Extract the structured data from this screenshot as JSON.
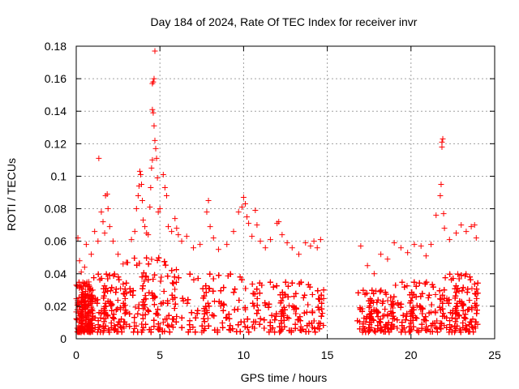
{
  "chart_data": {
    "type": "scatter",
    "title": "Day 184 of 2024, Rate Of TEC Index for receiver invr",
    "xlabel": "GPS time / hours",
    "ylabel": "ROTI / TECUs",
    "xlim": [
      0,
      25
    ],
    "ylim": [
      0,
      0.18
    ],
    "x_ticks": [
      0,
      5,
      10,
      15,
      20,
      25
    ],
    "x_tick_labels": [
      "0",
      "5",
      "10",
      "15",
      "20",
      "25"
    ],
    "y_ticks": [
      0,
      0.02,
      0.04,
      0.06,
      0.08,
      0.1,
      0.12,
      0.14,
      0.16,
      0.18
    ],
    "y_tick_labels": [
      "0",
      "0.02",
      "0.04",
      "0.06",
      "0.08",
      "0.1",
      "0.12",
      "0.14",
      "0.16",
      "0.18"
    ],
    "grid": true,
    "marker": "+",
    "color": "#ff0000",
    "data_gap_hours": [
      14.8,
      16.8
    ],
    "series": [
      {
        "name": "ROTI",
        "points": [
          [
            0.1,
            0.062
          ],
          [
            0.2,
            0.048
          ],
          [
            0.3,
            0.041
          ],
          [
            0.5,
            0.044
          ],
          [
            0.6,
            0.058
          ],
          [
            0.9,
            0.052
          ],
          [
            1.1,
            0.066
          ],
          [
            1.3,
            0.06
          ],
          [
            1.35,
            0.111
          ],
          [
            1.5,
            0.078
          ],
          [
            1.6,
            0.072
          ],
          [
            1.7,
            0.065
          ],
          [
            1.75,
            0.088
          ],
          [
            1.85,
            0.089
          ],
          [
            1.9,
            0.08
          ],
          [
            2.0,
            0.069
          ],
          [
            2.2,
            0.06
          ],
          [
            2.5,
            0.052
          ],
          [
            2.8,
            0.046
          ],
          [
            3.0,
            0.047
          ],
          [
            3.3,
            0.061
          ],
          [
            3.5,
            0.066
          ],
          [
            3.6,
            0.08
          ],
          [
            3.7,
            0.088
          ],
          [
            3.75,
            0.094
          ],
          [
            3.8,
            0.103
          ],
          [
            3.85,
            0.101
          ],
          [
            3.9,
            0.095
          ],
          [
            3.95,
            0.085
          ],
          [
            4.0,
            0.073
          ],
          [
            4.1,
            0.069
          ],
          [
            4.2,
            0.065
          ],
          [
            4.3,
            0.064
          ],
          [
            4.4,
            0.081
          ],
          [
            4.45,
            0.093
          ],
          [
            4.5,
            0.105
          ],
          [
            4.55,
            0.11
          ],
          [
            4.55,
            0.141
          ],
          [
            4.6,
            0.139
          ],
          [
            4.55,
            0.157
          ],
          [
            4.6,
            0.158
          ],
          [
            4.65,
            0.16
          ],
          [
            4.7,
            0.177
          ],
          [
            4.65,
            0.131
          ],
          [
            4.7,
            0.122
          ],
          [
            4.75,
            0.117
          ],
          [
            4.8,
            0.111
          ],
          [
            4.85,
            0.099
          ],
          [
            4.9,
            0.078
          ],
          [
            5.0,
            0.08
          ],
          [
            5.2,
            0.101
          ],
          [
            5.3,
            0.093
          ],
          [
            5.4,
            0.088
          ],
          [
            5.5,
            0.069
          ],
          [
            5.7,
            0.066
          ],
          [
            5.9,
            0.074
          ],
          [
            6.0,
            0.068
          ],
          [
            6.1,
            0.064
          ],
          [
            6.3,
            0.06
          ],
          [
            6.6,
            0.063
          ],
          [
            7.0,
            0.056
          ],
          [
            7.4,
            0.058
          ],
          [
            7.8,
            0.078
          ],
          [
            7.9,
            0.085
          ],
          [
            8.0,
            0.069
          ],
          [
            8.2,
            0.062
          ],
          [
            8.5,
            0.055
          ],
          [
            9.0,
            0.058
          ],
          [
            9.4,
            0.066
          ],
          [
            9.7,
            0.078
          ],
          [
            9.9,
            0.081
          ],
          [
            10.0,
            0.087
          ],
          [
            10.1,
            0.083
          ],
          [
            10.2,
            0.075
          ],
          [
            10.3,
            0.071
          ],
          [
            10.5,
            0.063
          ],
          [
            10.7,
            0.079
          ],
          [
            10.8,
            0.07
          ],
          [
            11.0,
            0.06
          ],
          [
            11.3,
            0.056
          ],
          [
            11.6,
            0.061
          ],
          [
            12.0,
            0.071
          ],
          [
            12.1,
            0.072
          ],
          [
            12.3,
            0.064
          ],
          [
            12.6,
            0.059
          ],
          [
            12.9,
            0.056
          ],
          [
            13.3,
            0.052
          ],
          [
            13.7,
            0.059
          ],
          [
            14.0,
            0.057
          ],
          [
            14.2,
            0.06
          ],
          [
            14.4,
            0.056
          ],
          [
            14.6,
            0.061
          ],
          [
            17.0,
            0.057
          ],
          [
            17.4,
            0.045
          ],
          [
            17.8,
            0.04
          ],
          [
            18.2,
            0.052
          ],
          [
            18.6,
            0.049
          ],
          [
            19.0,
            0.059
          ],
          [
            19.4,
            0.056
          ],
          [
            19.8,
            0.053
          ],
          [
            20.2,
            0.058
          ],
          [
            20.6,
            0.057
          ],
          [
            20.9,
            0.051
          ],
          [
            21.2,
            0.058
          ],
          [
            21.5,
            0.076
          ],
          [
            21.75,
            0.088
          ],
          [
            21.8,
            0.095
          ],
          [
            21.85,
            0.118
          ],
          [
            21.85,
            0.121
          ],
          [
            21.9,
            0.123
          ],
          [
            21.95,
            0.077
          ],
          [
            22.0,
            0.068
          ],
          [
            22.3,
            0.061
          ],
          [
            22.7,
            0.065
          ],
          [
            23.0,
            0.07
          ],
          [
            23.3,
            0.066
          ],
          [
            23.6,
            0.069
          ],
          [
            23.8,
            0.07
          ],
          [
            23.9,
            0.062
          ]
        ]
      }
    ],
    "bulk_density": [
      {
        "x_range": [
          0.0,
          1.0
        ],
        "y_max": 0.035
      },
      {
        "x_range": [
          1.0,
          3.0
        ],
        "y_max": 0.04
      },
      {
        "x_range": [
          3.0,
          6.0
        ],
        "y_max": 0.05
      },
      {
        "x_range": [
          6.0,
          11.0
        ],
        "y_max": 0.04
      },
      {
        "x_range": [
          11.0,
          14.8
        ],
        "y_max": 0.035
      },
      {
        "x_range": [
          16.8,
          19.0
        ],
        "y_max": 0.03
      },
      {
        "x_range": [
          19.0,
          22.0
        ],
        "y_max": 0.035
      },
      {
        "x_range": [
          22.0,
          24.0
        ],
        "y_max": 0.04
      }
    ]
  }
}
